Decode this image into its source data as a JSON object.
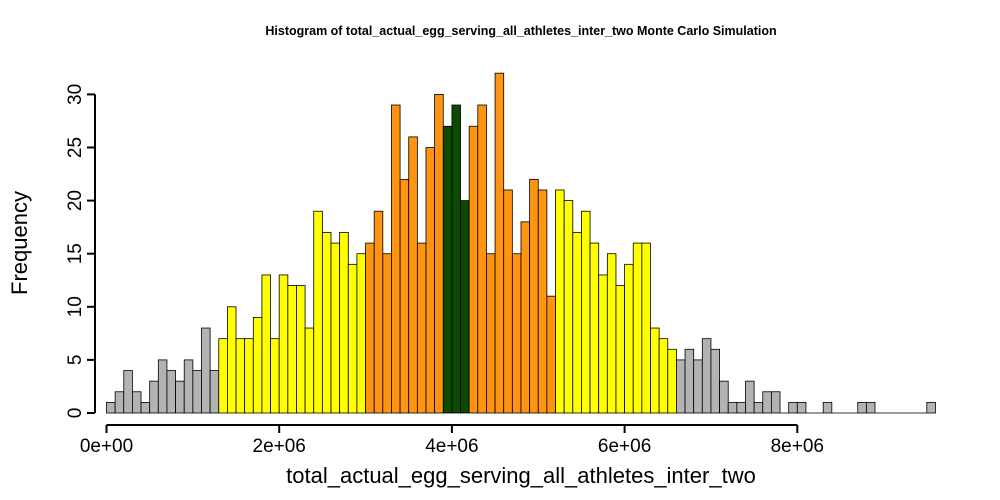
{
  "chart_data": {
    "type": "bar",
    "title": "Histogram of  total_actual_egg_serving_all_athletes_inter_two  Monte Carlo Simulation",
    "xlabel": "total_actual_egg_serving_all_athletes_inter_two",
    "ylabel": "Frequency",
    "bin_width": 100000,
    "x_start": 0,
    "xlim": [
      0,
      9600000
    ],
    "ylim": [
      0,
      32
    ],
    "x_ticks": [
      0,
      2000000,
      4000000,
      6000000,
      8000000
    ],
    "x_tick_labels": [
      "0e+00",
      "2e+06",
      "4e+06",
      "6e+06",
      "8e+06"
    ],
    "y_ticks": [
      0,
      5,
      10,
      15,
      20,
      25,
      30
    ],
    "y_tick_labels": [
      "0",
      "5",
      "10",
      "15",
      "20",
      "25",
      "30"
    ],
    "values": [
      1,
      2,
      4,
      2,
      1,
      3,
      5,
      4,
      3,
      5,
      4,
      8,
      4,
      7,
      10,
      7,
      7,
      9,
      13,
      7,
      13,
      12,
      12,
      8,
      19,
      17,
      16,
      17,
      14,
      15,
      16,
      19,
      15,
      29,
      22,
      26,
      16,
      25,
      30,
      27,
      29,
      20,
      27,
      29,
      15,
      32,
      21,
      15,
      18,
      22,
      21,
      11,
      21,
      20,
      17,
      19,
      16,
      13,
      15,
      12,
      14,
      16,
      16,
      8,
      7,
      6,
      5,
      6,
      5,
      7,
      6,
      3,
      1,
      1,
      3,
      1,
      2,
      2,
      0,
      1,
      1,
      0,
      0,
      1,
      0,
      0,
      0,
      1,
      1,
      0,
      0,
      0,
      0,
      0,
      0,
      1
    ],
    "color_bands": [
      {
        "from_bin": 0,
        "to_bin": 12,
        "color": "#b3b3b3"
      },
      {
        "from_bin": 13,
        "to_bin": 29,
        "color": "#ffff00"
      },
      {
        "from_bin": 30,
        "to_bin": 38,
        "color": "#ff9412"
      },
      {
        "from_bin": 39,
        "to_bin": 41,
        "color": "#0b4a00"
      },
      {
        "from_bin": 42,
        "to_bin": 51,
        "color": "#ff9412"
      },
      {
        "from_bin": 52,
        "to_bin": 65,
        "color": "#ffff00"
      },
      {
        "from_bin": 66,
        "to_bin": 95,
        "color": "#b3b3b3"
      }
    ]
  }
}
